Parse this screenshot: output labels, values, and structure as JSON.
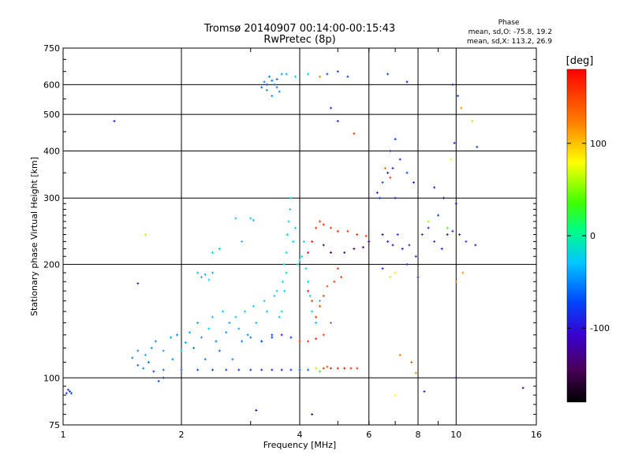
{
  "chart_data": {
    "type": "scatter",
    "title": "Tromsø 20140907 00:14:00-00:15:43",
    "subtitle": "RwPretec (8p)",
    "xlabel": "Frequency [MHz]",
    "ylabel": "Stationary phase Virtual Height [km]",
    "x_scale": "log",
    "y_scale": "log",
    "xlim": [
      1,
      16
    ],
    "ylim": [
      75,
      750
    ],
    "x_ticks": [
      1,
      2,
      4,
      6,
      8,
      10,
      16
    ],
    "x_tick_labels": [
      "1",
      "2",
      "4",
      "6",
      "8",
      "10",
      "16"
    ],
    "y_ticks": [
      75,
      100,
      200,
      300,
      400,
      500,
      600,
      750
    ],
    "y_tick_labels": [
      "75",
      "100",
      "200",
      "300",
      "400",
      "500",
      "600",
      "750"
    ],
    "grid": true,
    "stats": {
      "heading": "Phase",
      "line1": "mean, sd,O: -75.8, 19.2",
      "line2": "mean, sd,X: 113.2, 26.9"
    },
    "colorbar": {
      "label": "[deg]",
      "range": [
        -180,
        180
      ],
      "ticks": [
        100,
        0,
        -100
      ],
      "tick_labels": [
        "100",
        "0",
        "-100"
      ]
    },
    "series": [
      {
        "points": [
          [
            1.02,
            91,
            -110
          ],
          [
            1.04,
            92,
            -110
          ],
          [
            1.05,
            91,
            -100
          ],
          [
            1.03,
            93,
            -110
          ],
          [
            1.35,
            480,
            -130
          ],
          [
            1.55,
            178,
            -110
          ],
          [
            1.62,
            240,
            60
          ],
          [
            1.55,
            108,
            -90
          ],
          [
            1.6,
            106,
            -80
          ],
          [
            1.65,
            110,
            -90
          ],
          [
            1.7,
            104,
            -100
          ],
          [
            1.75,
            98,
            -100
          ],
          [
            1.8,
            100,
            -110
          ],
          [
            1.9,
            112,
            -80
          ],
          [
            1.5,
            113,
            -80
          ],
          [
            1.55,
            118,
            -80
          ],
          [
            1.62,
            115,
            -70
          ],
          [
            1.68,
            120,
            -75
          ],
          [
            1.72,
            125,
            -80
          ],
          [
            1.8,
            118,
            -70
          ],
          [
            1.88,
            128,
            -75
          ],
          [
            1.95,
            130,
            -80
          ],
          [
            2.0,
            118,
            -70
          ],
          [
            2.05,
            124,
            -75
          ],
          [
            2.1,
            132,
            -70
          ],
          [
            2.15,
            120,
            -85
          ],
          [
            2.2,
            140,
            -70
          ],
          [
            2.25,
            128,
            -75
          ],
          [
            2.3,
            112,
            -85
          ],
          [
            2.35,
            135,
            -60
          ],
          [
            2.4,
            145,
            -60
          ],
          [
            2.45,
            125,
            -85
          ],
          [
            2.5,
            118,
            -90
          ],
          [
            2.55,
            150,
            -55
          ],
          [
            2.6,
            132,
            -75
          ],
          [
            2.65,
            140,
            -70
          ],
          [
            2.7,
            112,
            -80
          ],
          [
            2.75,
            145,
            -60
          ],
          [
            2.8,
            135,
            -70
          ],
          [
            2.85,
            125,
            -85
          ],
          [
            2.9,
            150,
            -60
          ],
          [
            2.95,
            130,
            -80
          ],
          [
            3.0,
            128,
            -85
          ],
          [
            3.05,
            155,
            -60
          ],
          [
            3.1,
            140,
            -65
          ],
          [
            3.2,
            125,
            -85
          ],
          [
            3.25,
            160,
            -55
          ],
          [
            3.3,
            150,
            -60
          ],
          [
            3.4,
            130,
            -100
          ],
          [
            3.45,
            165,
            -60
          ],
          [
            3.5,
            170,
            -55
          ],
          [
            3.55,
            145,
            -65
          ],
          [
            3.6,
            150,
            -40
          ],
          [
            3.62,
            180,
            -45
          ],
          [
            3.65,
            200,
            -40
          ],
          [
            3.7,
            215,
            -45
          ],
          [
            3.72,
            240,
            -50
          ],
          [
            3.75,
            260,
            -55
          ],
          [
            3.78,
            280,
            -55
          ],
          [
            3.8,
            300,
            -50
          ],
          [
            3.7,
            190,
            -50
          ],
          [
            3.66,
            170,
            -55
          ],
          [
            3.85,
            230,
            -45
          ],
          [
            3.9,
            250,
            -50
          ],
          [
            3.95,
            200,
            -40
          ],
          [
            4.0,
            205,
            -35
          ],
          [
            4.05,
            210,
            -45
          ],
          [
            4.1,
            230,
            -50
          ],
          [
            4.15,
            195,
            -40
          ],
          [
            4.2,
            180,
            -45
          ],
          [
            4.25,
            165,
            -50
          ],
          [
            4.3,
            150,
            -60
          ],
          [
            4.4,
            140,
            -65
          ],
          [
            4.5,
            160,
            -60
          ],
          [
            2.2,
            190,
            -60
          ],
          [
            2.25,
            185,
            -65
          ],
          [
            2.3,
            188,
            -70
          ],
          [
            2.35,
            182,
            -60
          ],
          [
            2.4,
            190,
            -65
          ],
          [
            2.75,
            265,
            -60
          ],
          [
            2.85,
            230,
            -60
          ],
          [
            3.0,
            265,
            -60
          ],
          [
            3.05,
            262,
            -65
          ],
          [
            2.4,
            215,
            -40
          ],
          [
            2.5,
            220,
            -55
          ],
          [
            3.2,
            590,
            -90
          ],
          [
            3.25,
            610,
            -85
          ],
          [
            3.3,
            580,
            -80
          ],
          [
            3.35,
            630,
            -90
          ],
          [
            3.4,
            560,
            -80
          ],
          [
            3.45,
            600,
            -85
          ],
          [
            3.5,
            620,
            -90
          ],
          [
            3.55,
            575,
            -80
          ],
          [
            3.6,
            640,
            -75
          ],
          [
            3.3,
            600,
            -95
          ],
          [
            3.4,
            615,
            -90
          ],
          [
            3.5,
            590,
            -85
          ],
          [
            3.7,
            640,
            -70
          ],
          [
            3.9,
            630,
            -50
          ],
          [
            4.2,
            640,
            -55
          ],
          [
            4.5,
            630,
            130
          ],
          [
            4.7,
            640,
            -100
          ],
          [
            5.0,
            650,
            -110
          ],
          [
            5.3,
            630,
            -110
          ],
          [
            4.8,
            520,
            -110
          ],
          [
            5.0,
            480,
            -120
          ],
          [
            5.5,
            445,
            160
          ],
          [
            1.8,
            105,
            -90
          ],
          [
            2.0,
            105,
            -95
          ],
          [
            2.2,
            105,
            -100
          ],
          [
            2.4,
            105,
            -100
          ],
          [
            2.6,
            105,
            -105
          ],
          [
            2.8,
            105,
            -110
          ],
          [
            3.0,
            105,
            -110
          ],
          [
            3.2,
            105,
            -115
          ],
          [
            3.4,
            105,
            -120
          ],
          [
            3.6,
            105,
            -120
          ],
          [
            3.8,
            105,
            -110
          ],
          [
            4.0,
            105,
            -100
          ],
          [
            4.2,
            105,
            -90
          ],
          [
            4.4,
            106,
            60
          ],
          [
            4.6,
            106,
            160
          ],
          [
            4.8,
            106,
            170
          ],
          [
            5.0,
            106,
            170
          ],
          [
            5.2,
            106,
            175
          ],
          [
            5.4,
            106,
            165
          ],
          [
            5.6,
            106,
            160
          ],
          [
            4.5,
            104,
            20
          ],
          [
            4.7,
            107,
            150
          ],
          [
            3.2,
            125,
            -100
          ],
          [
            3.4,
            128,
            -110
          ],
          [
            3.6,
            130,
            -120
          ],
          [
            3.8,
            128,
            -110
          ],
          [
            4.0,
            125,
            170
          ],
          [
            4.2,
            125,
            160
          ],
          [
            4.4,
            127,
            165
          ],
          [
            4.6,
            130,
            160
          ],
          [
            4.8,
            140,
            150
          ],
          [
            4.4,
            145,
            165
          ],
          [
            4.5,
            155,
            150
          ],
          [
            4.3,
            160,
            160
          ],
          [
            4.2,
            170,
            170
          ],
          [
            4.6,
            165,
            160
          ],
          [
            4.7,
            175,
            150
          ],
          [
            4.9,
            180,
            160
          ],
          [
            5.0,
            195,
            165
          ],
          [
            5.1,
            185,
            155
          ],
          [
            4.2,
            215,
            175
          ],
          [
            4.3,
            230,
            170
          ],
          [
            4.4,
            250,
            160
          ],
          [
            4.5,
            260,
            160
          ],
          [
            4.6,
            255,
            165
          ],
          [
            4.8,
            250,
            160
          ],
          [
            5.0,
            245,
            165
          ],
          [
            5.3,
            245,
            160
          ],
          [
            5.6,
            240,
            165
          ],
          [
            5.9,
            238,
            160
          ],
          [
            4.6,
            225,
            -150
          ],
          [
            4.8,
            215,
            -150
          ],
          [
            5.2,
            215,
            -145
          ],
          [
            5.5,
            220,
            -150
          ],
          [
            5.8,
            222,
            -140
          ],
          [
            6.0,
            230,
            -140
          ],
          [
            6.3,
            310,
            -120
          ],
          [
            6.5,
            330,
            -100
          ],
          [
            6.4,
            300,
            -110
          ],
          [
            6.7,
            350,
            -130
          ],
          [
            6.9,
            360,
            -120
          ],
          [
            6.6,
            360,
            140
          ],
          [
            6.8,
            340,
            160
          ],
          [
            7.0,
            300,
            -120
          ],
          [
            7.2,
            380,
            -110
          ],
          [
            7.5,
            350,
            -100
          ],
          [
            7.8,
            330,
            -120
          ],
          [
            6.8,
            400,
            -120
          ],
          [
            7.0,
            430,
            -110
          ],
          [
            6.5,
            240,
            -140
          ],
          [
            6.7,
            230,
            -120
          ],
          [
            6.9,
            225,
            -130
          ],
          [
            7.1,
            240,
            -110
          ],
          [
            7.3,
            220,
            -120
          ],
          [
            7.6,
            225,
            -110
          ],
          [
            7.9,
            210,
            -120
          ],
          [
            8.2,
            240,
            -110
          ],
          [
            8.5,
            250,
            -120
          ],
          [
            8.8,
            230,
            -110
          ],
          [
            9.2,
            220,
            -120
          ],
          [
            9.5,
            240,
            -130
          ],
          [
            9.8,
            245,
            -120
          ],
          [
            10.2,
            240,
            -120
          ],
          [
            10.6,
            230,
            -110
          ],
          [
            11.2,
            225,
            -120
          ],
          [
            6.8,
            185,
            60
          ],
          [
            7.0,
            190,
            90
          ],
          [
            7.5,
            200,
            -110
          ],
          [
            8.0,
            185,
            -120
          ],
          [
            8.5,
            260,
            50
          ],
          [
            9.0,
            270,
            -100
          ],
          [
            9.5,
            250,
            30
          ],
          [
            10.0,
            290,
            -130
          ],
          [
            10.4,
            190,
            120
          ],
          [
            10.0,
            180,
            130
          ],
          [
            6.5,
            195,
            -120
          ],
          [
            7.2,
            115,
            140
          ],
          [
            7.7,
            110,
            150
          ],
          [
            7.9,
            103,
            130
          ],
          [
            7.0,
            90,
            80
          ],
          [
            10.0,
            100,
            -140
          ],
          [
            14.8,
            94,
            -140
          ],
          [
            8.3,
            92,
            -120
          ],
          [
            6.7,
            640,
            -100
          ],
          [
            7.5,
            610,
            -130
          ],
          [
            9.8,
            600,
            -120
          ],
          [
            10.1,
            560,
            -100
          ],
          [
            10.3,
            520,
            120
          ],
          [
            11.0,
            480,
            100
          ],
          [
            11.3,
            410,
            -100
          ],
          [
            9.9,
            420,
            -120
          ],
          [
            9.7,
            380,
            80
          ],
          [
            9.3,
            300,
            -140
          ],
          [
            8.8,
            320,
            -120
          ],
          [
            3.1,
            82,
            -140
          ],
          [
            4.3,
            80,
            -140
          ]
        ]
      }
    ]
  }
}
